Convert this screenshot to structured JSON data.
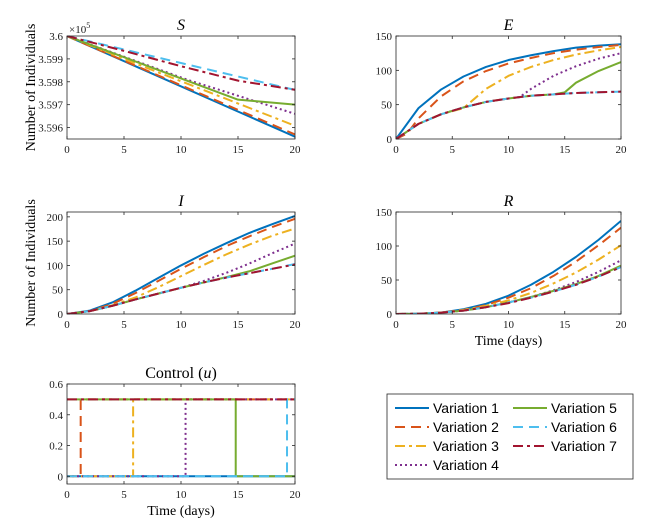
{
  "chart_data": [
    {
      "id": "S",
      "type": "line",
      "title": "S",
      "title_italic": true,
      "ylabel": "Number of Individuals",
      "xlabel": "",
      "xlim": [
        0,
        20
      ],
      "ylim": [
        359550,
        360000
      ],
      "xticks": [
        0,
        5,
        10,
        15,
        20
      ],
      "yticks": [
        359600,
        359700,
        359800,
        359900,
        360000
      ],
      "ytick_labels": [
        "3.596",
        "3.597",
        "3.598",
        "3.599",
        "3.6"
      ],
      "exponent_label": "×10",
      "exponent_power": "5",
      "series": [
        {
          "name": "Variation 1",
          "x": [
            0,
            20
          ],
          "y": [
            360000,
            359560
          ]
        },
        {
          "name": "Variation 2",
          "x": [
            0,
            1,
            20
          ],
          "y": [
            360000,
            359978,
            359570
          ]
        },
        {
          "name": "Variation 3",
          "x": [
            0,
            6,
            20
          ],
          "y": [
            360000,
            359880,
            359608
          ]
        },
        {
          "name": "Variation 4",
          "x": [
            0,
            10.5,
            20
          ],
          "y": [
            360000,
            359810,
            359660
          ]
        },
        {
          "name": "Variation 5",
          "x": [
            0,
            15,
            20
          ],
          "y": [
            360000,
            359722,
            359700
          ]
        },
        {
          "name": "Variation 6",
          "x": [
            0,
            19.5,
            20
          ],
          "y": [
            360000,
            359770,
            359765
          ]
        },
        {
          "name": "Variation 7",
          "x": [
            0,
            5,
            10,
            15,
            20
          ],
          "y": [
            360000,
            359935,
            359868,
            359805,
            359765
          ]
        }
      ]
    },
    {
      "id": "E",
      "type": "line",
      "title": "E",
      "title_italic": true,
      "ylabel": "",
      "xlabel": "",
      "xlim": [
        0,
        20
      ],
      "ylim": [
        0,
        150
      ],
      "xticks": [
        0,
        5,
        10,
        15,
        20
      ],
      "yticks": [
        0,
        50,
        100,
        150
      ],
      "series": [
        {
          "name": "Variation 1",
          "x": [
            0,
            2,
            4,
            6,
            8,
            10,
            12,
            14,
            16,
            18,
            20
          ],
          "y": [
            0,
            45,
            72,
            91,
            105,
            115,
            122,
            128,
            133,
            136,
            138
          ]
        },
        {
          "name": "Variation 2",
          "x": [
            0,
            1,
            2,
            4,
            6,
            8,
            10,
            12,
            14,
            16,
            18,
            20
          ],
          "y": [
            0,
            8,
            30,
            62,
            84,
            99,
            110,
            118,
            125,
            130,
            134,
            137
          ]
        },
        {
          "name": "Variation 3",
          "x": [
            0,
            2,
            4,
            6,
            8,
            10,
            12,
            14,
            16,
            18,
            20
          ],
          "y": [
            0,
            22,
            36,
            45,
            73,
            92,
            105,
            115,
            123,
            129,
            134
          ]
        },
        {
          "name": "Variation 4",
          "x": [
            0,
            2,
            4,
            6,
            8,
            10,
            11,
            12,
            14,
            16,
            18,
            20
          ],
          "y": [
            0,
            22,
            36,
            46,
            54,
            59,
            61,
            73,
            92,
            106,
            117,
            125
          ]
        },
        {
          "name": "Variation 5",
          "x": [
            0,
            2,
            4,
            6,
            8,
            10,
            12,
            14,
            15,
            16,
            18,
            20
          ],
          "y": [
            0,
            22,
            36,
            46,
            54,
            59,
            63,
            65,
            68,
            82,
            99,
            112
          ]
        },
        {
          "name": "Variation 6",
          "x": [
            0,
            2,
            4,
            6,
            8,
            10,
            12,
            14,
            16,
            18,
            20
          ],
          "y": [
            0,
            22,
            36,
            46,
            54,
            59,
            63,
            65,
            67,
            68,
            69
          ]
        },
        {
          "name": "Variation 7",
          "x": [
            0,
            2,
            4,
            6,
            8,
            10,
            12,
            14,
            16,
            18,
            20
          ],
          "y": [
            0,
            22,
            36,
            46,
            54,
            59,
            63,
            65,
            67,
            68,
            69
          ]
        }
      ]
    },
    {
      "id": "I",
      "type": "line",
      "title": "I",
      "title_italic": true,
      "ylabel": "Number of Individuals",
      "xlabel": "",
      "xlim": [
        0,
        20
      ],
      "ylim": [
        0,
        210
      ],
      "xticks": [
        0,
        5,
        10,
        15,
        20
      ],
      "yticks": [
        0,
        50,
        100,
        150,
        200
      ],
      "series": [
        {
          "name": "Variation 1",
          "x": [
            0,
            2,
            4,
            6,
            8,
            10,
            12,
            14,
            16,
            18,
            20
          ],
          "y": [
            0,
            7,
            24,
            48,
            74,
            100,
            124,
            146,
            167,
            185,
            202
          ]
        },
        {
          "name": "Variation 2",
          "x": [
            0,
            2,
            4,
            6,
            8,
            10,
            12,
            14,
            16,
            18,
            20
          ],
          "y": [
            0,
            6,
            21,
            43,
            68,
            93,
            117,
            140,
            160,
            179,
            196
          ]
        },
        {
          "name": "Variation 3",
          "x": [
            0,
            2,
            4,
            6,
            8,
            10,
            12,
            14,
            16,
            18,
            20
          ],
          "y": [
            0,
            6,
            18,
            34,
            55,
            78,
            101,
            123,
            143,
            161,
            176
          ]
        },
        {
          "name": "Variation 4",
          "x": [
            0,
            2,
            4,
            6,
            8,
            10,
            12,
            14,
            16,
            18,
            20
          ],
          "y": [
            0,
            6,
            17,
            30,
            42,
            54,
            68,
            85,
            104,
            125,
            145
          ]
        },
        {
          "name": "Variation 5",
          "x": [
            0,
            2,
            4,
            6,
            8,
            10,
            12,
            14,
            16,
            18,
            20
          ],
          "y": [
            0,
            6,
            17,
            30,
            42,
            54,
            65,
            76,
            88,
            104,
            120
          ]
        },
        {
          "name": "Variation 6",
          "x": [
            0,
            2,
            4,
            6,
            8,
            10,
            12,
            14,
            16,
            18,
            20
          ],
          "y": [
            0,
            6,
            17,
            30,
            42,
            54,
            65,
            75,
            84,
            93,
            103
          ]
        },
        {
          "name": "Variation 7",
          "x": [
            0,
            2,
            4,
            6,
            8,
            10,
            12,
            14,
            16,
            18,
            20
          ],
          "y": [
            0,
            6,
            17,
            30,
            42,
            54,
            65,
            75,
            84,
            93,
            102
          ]
        }
      ]
    },
    {
      "id": "R",
      "type": "line",
      "title": "R",
      "title_italic": true,
      "ylabel": "",
      "xlabel": "Time (days)",
      "xlim": [
        0,
        20
      ],
      "ylim": [
        0,
        150
      ],
      "xticks": [
        0,
        5,
        10,
        15,
        20
      ],
      "yticks": [
        0,
        50,
        100,
        150
      ],
      "series": [
        {
          "name": "Variation 1",
          "x": [
            0,
            2,
            4,
            6,
            8,
            10,
            12,
            14,
            16,
            18,
            20
          ],
          "y": [
            0,
            0.4,
            2,
            7,
            15,
            27,
            43,
            62,
            84,
            109,
            137
          ]
        },
        {
          "name": "Variation 2",
          "x": [
            0,
            2,
            4,
            6,
            8,
            10,
            12,
            14,
            16,
            18,
            20
          ],
          "y": [
            0,
            0.4,
            2,
            6,
            13,
            24,
            38,
            56,
            77,
            101,
            127
          ]
        },
        {
          "name": "Variation 3",
          "x": [
            0,
            2,
            4,
            6,
            8,
            10,
            12,
            14,
            16,
            18,
            20
          ],
          "y": [
            0,
            0.4,
            2,
            6,
            12,
            20,
            31,
            45,
            61,
            80,
            101
          ]
        },
        {
          "name": "Variation 4",
          "x": [
            0,
            2,
            4,
            6,
            8,
            10,
            12,
            14,
            16,
            18,
            20
          ],
          "y": [
            0,
            0.4,
            2,
            5,
            10,
            17,
            25,
            35,
            47,
            62,
            79
          ]
        },
        {
          "name": "Variation 5",
          "x": [
            0,
            2,
            4,
            6,
            8,
            10,
            12,
            14,
            16,
            18,
            20
          ],
          "y": [
            0,
            0.4,
            2,
            5,
            10,
            17,
            25,
            34,
            44,
            56,
            71
          ]
        },
        {
          "name": "Variation 6",
          "x": [
            0,
            2,
            4,
            6,
            8,
            10,
            12,
            14,
            16,
            18,
            20
          ],
          "y": [
            0,
            0.4,
            2,
            5,
            10,
            17,
            24,
            33,
            43,
            55,
            69
          ]
        },
        {
          "name": "Variation 7",
          "x": [
            0,
            2,
            4,
            6,
            8,
            10,
            12,
            14,
            16,
            18,
            20
          ],
          "y": [
            0,
            0.4,
            2,
            5,
            10,
            16,
            24,
            33,
            43,
            55,
            69
          ]
        }
      ]
    },
    {
      "id": "u",
      "type": "line",
      "title": "Control",
      "title_symbol": "u",
      "ylabel": "",
      "xlabel": "Time (days)",
      "xlim": [
        0,
        20
      ],
      "ylim": [
        -0.05,
        0.6
      ],
      "xticks": [
        0,
        5,
        10,
        15,
        20
      ],
      "yticks": [
        0,
        0.2,
        0.4,
        0.6
      ],
      "ytick_labels": [
        "0",
        "0.2",
        "0.4",
        "0.6"
      ],
      "series": [
        {
          "name": "Variation 1",
          "x": [
            0,
            20
          ],
          "y": [
            0,
            0
          ]
        },
        {
          "name": "Variation 2",
          "x": [
            0,
            1.2,
            1.2,
            20
          ],
          "y": [
            0,
            0,
            0.5,
            0.5
          ]
        },
        {
          "name": "Variation 3",
          "x": [
            0,
            5.8,
            5.8,
            20
          ],
          "y": [
            0,
            0,
            0.5,
            0.5
          ]
        },
        {
          "name": "Variation 4",
          "x": [
            0,
            10.4,
            10.4,
            20
          ],
          "y": [
            0,
            0,
            0.5,
            0.5
          ]
        },
        {
          "name": "Variation 5",
          "x": [
            0,
            14.8,
            14.8,
            20
          ],
          "y": [
            0.5,
            0.5,
            0,
            0
          ]
        },
        {
          "name": "Variation 6",
          "x": [
            0,
            19.3,
            19.3,
            20
          ],
          "y": [
            0,
            0,
            0.5,
            0.5
          ]
        },
        {
          "name": "Variation 7",
          "x": [
            0,
            20
          ],
          "y": [
            0.5,
            0.5
          ]
        }
      ]
    }
  ],
  "legend": {
    "placement": "bottom-right",
    "entries": [
      "Variation 1",
      "Variation 2",
      "Variation 3",
      "Variation 4",
      "Variation 5",
      "Variation 6",
      "Variation 7"
    ]
  },
  "styles": [
    {
      "name": "Variation 1",
      "color": "#0072BD",
      "dash": ""
    },
    {
      "name": "Variation 2",
      "color": "#D95319",
      "dash": "10,6"
    },
    {
      "name": "Variation 3",
      "color": "#EDB120",
      "dash": "10,4,3,4"
    },
    {
      "name": "Variation 4",
      "color": "#7E2F8E",
      "dash": "2,3"
    },
    {
      "name": "Variation 5",
      "color": "#77AC30",
      "dash": ""
    },
    {
      "name": "Variation 6",
      "color": "#4DBEEE",
      "dash": "10,6"
    },
    {
      "name": "Variation 7",
      "color": "#A2142F",
      "dash": "10,4,3,4"
    }
  ]
}
